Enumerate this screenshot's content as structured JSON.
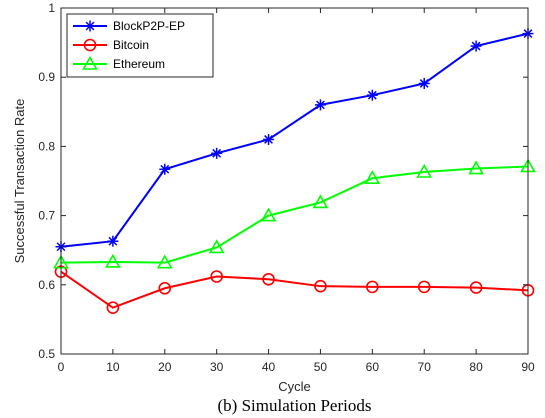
{
  "chart_data": {
    "type": "line",
    "title": "",
    "xlabel": "Cycle",
    "ylabel": "Successful Transaction Rate",
    "caption": "(b)  Simulation Periods",
    "x": [
      0,
      10,
      20,
      30,
      40,
      50,
      60,
      70,
      80,
      90
    ],
    "xlim": [
      0,
      90
    ],
    "ylim": [
      0.5,
      1.0
    ],
    "xticks": [
      "0",
      "10",
      "20",
      "30",
      "40",
      "50",
      "60",
      "70",
      "80",
      "90"
    ],
    "yticks": [
      "0.5",
      "0.6",
      "0.7",
      "0.8",
      "0.9",
      "1"
    ],
    "grid": false,
    "legend_position": "top-left",
    "series": [
      {
        "name": "BlockP2P-EP",
        "color": "#0000ff",
        "marker": "asterisk",
        "values": [
          0.655,
          0.663,
          0.767,
          0.79,
          0.81,
          0.86,
          0.874,
          0.891,
          0.945,
          0.963
        ]
      },
      {
        "name": "Bitcoin",
        "color": "#ff0000",
        "marker": "circle",
        "values": [
          0.619,
          0.567,
          0.595,
          0.612,
          0.608,
          0.598,
          0.597,
          0.597,
          0.596,
          0.592
        ]
      },
      {
        "name": "Ethereum",
        "color": "#00ff00",
        "marker": "triangle",
        "values": [
          0.632,
          0.633,
          0.632,
          0.654,
          0.7,
          0.719,
          0.754,
          0.763,
          0.768,
          0.771
        ]
      }
    ]
  }
}
